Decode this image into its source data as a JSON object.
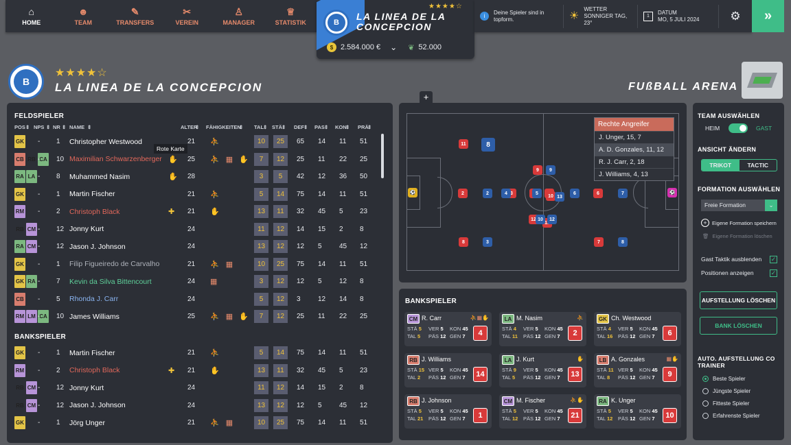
{
  "nav": [
    {
      "label": "HOME",
      "icon": "home-icon",
      "glyph": "⌂"
    },
    {
      "label": "TEAM",
      "icon": "team-icon",
      "glyph": "☻"
    },
    {
      "label": "TRANSFERS",
      "icon": "transfers-icon",
      "glyph": "✎"
    },
    {
      "label": "VEREIN",
      "icon": "club-icon",
      "glyph": "✂"
    },
    {
      "label": "MANAGER",
      "icon": "manager-icon",
      "glyph": "♙"
    },
    {
      "label": "STATISTIK",
      "icon": "trophy-icon",
      "glyph": "♕"
    }
  ],
  "club": {
    "name": "LA LINEA DE LA CONCEPCION",
    "logo_letter": "B",
    "stars": "★★★★☆",
    "money": "2.584.000 €",
    "fans": "52.000"
  },
  "info": {
    "notice": "Deine Spieler sind in topform.",
    "weather_title": "WETTER",
    "weather_value": "SONNIGER TAG, 23°",
    "date_title": "DATUM",
    "date_value": "MO, 5 JULI 2024",
    "next": "»"
  },
  "arena": "FUßBALL ARENA",
  "field": {
    "title": "FELDSPIELER",
    "bench_title": "BANKSPIELER",
    "tooltip_hover": "Rote Karte",
    "headers": {
      "pos": "POS",
      "nps": "NPS",
      "nr": "NR",
      "name": "NAME",
      "alter": "ALTER",
      "faeh": "FÄHIGKEITEN",
      "tal": "TAL",
      "sta": "STÄ",
      "def": "DEF",
      "pas": "PAS",
      "kon": "KON",
      "prae": "PRÄ"
    },
    "rows": [
      {
        "pos": [
          "GK"
        ],
        "nps": "-",
        "nr": "1",
        "name": "Christopher Westwood",
        "color": "#ffffff",
        "extra": "",
        "alter": "21",
        "skills": "⛹",
        "tal": "10",
        "sta": "25",
        "def": "65",
        "pas": "14",
        "kon": "11",
        "prae": "51"
      },
      {
        "pos": [
          "CB",
          "RB",
          "CA"
        ],
        "nps": "-",
        "nr": "10",
        "name": "Maximilian Schwarzenberger",
        "color": "#e2685b",
        "extra": "✋",
        "alter": "25",
        "skills": "⛹ ▦ ✋",
        "tal": "7",
        "sta": "12",
        "def": "25",
        "pas": "11",
        "kon": "22",
        "prae": "25"
      },
      {
        "pos": [
          "RA",
          "LA"
        ],
        "nps": "-",
        "nr": "8",
        "name": "Muhammed Nasim",
        "color": "#ffffff",
        "extra": "✋",
        "alter": "28",
        "skills": "",
        "tal": "3",
        "sta": "5",
        "def": "42",
        "pas": "12",
        "kon": "36",
        "prae": "50"
      },
      {
        "pos": [
          "GK"
        ],
        "nps": "-",
        "nr": "1",
        "name": "Martin Fischer",
        "color": "#ffffff",
        "extra": "",
        "alter": "21",
        "skills": "⛹",
        "tal": "5",
        "sta": "14",
        "def": "75",
        "pas": "14",
        "kon": "11",
        "prae": "51"
      },
      {
        "pos": [
          "RM"
        ],
        "nps": "-",
        "nr": "2",
        "name": "Christoph Black",
        "color": "#e2685b",
        "extra": "✚",
        "alter": "21",
        "skills": "✋",
        "tal": "13",
        "sta": "11",
        "def": "32",
        "pas": "45",
        "kon": "5",
        "prae": "23"
      },
      {
        "pos": [
          "RB",
          "CM"
        ],
        "nps": "-",
        "nr": "12",
        "name": "Jonny Kurt",
        "color": "#ffffff",
        "extra": "",
        "alter": "24",
        "skills": "",
        "tal": "11",
        "sta": "12",
        "def": "14",
        "pas": "15",
        "kon": "2",
        "prae": "8"
      },
      {
        "pos": [
          "RA",
          "CM"
        ],
        "nps": "-",
        "nr": "12",
        "name": "Jason J. Johnson",
        "color": "#ffffff",
        "extra": "",
        "alter": "24",
        "skills": "",
        "tal": "13",
        "sta": "12",
        "def": "12",
        "pas": "5",
        "kon": "45",
        "prae": "12"
      },
      {
        "pos": [
          "GK"
        ],
        "nps": "-",
        "nr": "1",
        "name": "Filip Figueiredo de Carvalho",
        "color": "#aeb2ba",
        "extra": "",
        "alter": "21",
        "skills": "⛹ ▦",
        "tal": "10",
        "sta": "25",
        "def": "75",
        "pas": "14",
        "kon": "11",
        "prae": "51"
      },
      {
        "pos": [
          "GK",
          "RA"
        ],
        "nps": "-",
        "nr": "7",
        "name": "Kevin da Silva Bittencourt",
        "color": "#5fd09a",
        "extra": "",
        "alter": "24",
        "skills": "▦",
        "tal": "3",
        "sta": "12",
        "def": "12",
        "pas": "5",
        "kon": "12",
        "prae": "8"
      },
      {
        "pos": [
          "CB"
        ],
        "nps": "-",
        "nr": "5",
        "name": "Rhonda J. Carr",
        "color": "#8ab4f0",
        "extra": "",
        "alter": "24",
        "skills": "",
        "tal": "5",
        "sta": "12",
        "def": "3",
        "pas": "12",
        "kon": "14",
        "prae": "8"
      },
      {
        "pos": [
          "RM",
          "LM",
          "CA"
        ],
        "nps": "-",
        "nr": "10",
        "name": "James Williams",
        "color": "#ffffff",
        "extra": "",
        "alter": "25",
        "skills": "⛹ ▦ ✋",
        "tal": "7",
        "sta": "12",
        "def": "25",
        "pas": "11",
        "kon": "22",
        "prae": "25"
      }
    ],
    "bench": [
      {
        "pos": [
          "GK"
        ],
        "nps": "-",
        "nr": "1",
        "name": "Martin Fischer",
        "color": "#ffffff",
        "extra": "",
        "alter": "21",
        "skills": "⛹",
        "tal": "5",
        "sta": "14",
        "def": "75",
        "pas": "14",
        "kon": "11",
        "prae": "51"
      },
      {
        "pos": [
          "RM"
        ],
        "nps": "-",
        "nr": "2",
        "name": "Christoph Black",
        "color": "#e2685b",
        "extra": "✚",
        "alter": "21",
        "skills": "✋",
        "tal": "13",
        "sta": "11",
        "def": "32",
        "pas": "45",
        "kon": "5",
        "prae": "23"
      },
      {
        "pos": [
          "RB",
          "CM"
        ],
        "nps": "-",
        "nr": "12",
        "name": "Jonny Kurt",
        "color": "#ffffff",
        "extra": "",
        "alter": "24",
        "skills": "",
        "tal": "11",
        "sta": "12",
        "def": "14",
        "pas": "15",
        "kon": "2",
        "prae": "8"
      },
      {
        "pos": [
          "RB",
          "CM"
        ],
        "nps": "-",
        "nr": "12",
        "name": "Jason J. Johnson",
        "color": "#ffffff",
        "extra": "",
        "alter": "24",
        "skills": "",
        "tal": "13",
        "sta": "12",
        "def": "12",
        "pas": "5",
        "kon": "45",
        "prae": "12"
      },
      {
        "pos": [
          "GK"
        ],
        "nps": "-",
        "nr": "1",
        "name": "Jörg Unger",
        "color": "#ffffff",
        "extra": "",
        "alter": "21",
        "skills": "⛹ ▦",
        "tal": "10",
        "sta": "25",
        "def": "75",
        "pas": "14",
        "kon": "11",
        "prae": "51"
      }
    ]
  },
  "pitch": {
    "plus": "+",
    "shirts_red": [
      "11",
      "2",
      "3",
      "4",
      "5",
      "6",
      "7",
      "8",
      "9",
      "10",
      "12",
      "13"
    ],
    "shirts_blue": [
      "8",
      "2",
      "3",
      "4",
      "5",
      "6",
      "7",
      "8",
      "9",
      "10",
      "12",
      "13"
    ],
    "tooltip": {
      "title": "Rechte Angreifer",
      "items": [
        "J. Unger, 15, 7",
        "A. D. Gonzales, 11, 12",
        "R. J. Carr, 2, 18",
        "J. Williams, 4, 13"
      ]
    }
  },
  "bankspieler": {
    "title": "BANKSPIELER",
    "labels": {
      "sta": "STÄ",
      "tal": "TAL",
      "ver": "VER",
      "pas": "PÄS",
      "kon": "KON",
      "gen": "GEN"
    },
    "cards": [
      {
        "pos": "CM",
        "name": "R. Carr",
        "sta": "5",
        "tal": "5",
        "ver": "5",
        "pas": "12",
        "kon": "45",
        "gen": "7",
        "nr": "4",
        "skills": "⛹▦✋"
      },
      {
        "pos": "LA",
        "name": "M. Nasim",
        "sta": "4",
        "tal": "11",
        "ver": "5",
        "pas": "12",
        "kon": "45",
        "gen": "7",
        "nr": "2",
        "skills": "⛹"
      },
      {
        "pos": "GK",
        "name": "Ch. Westwood",
        "sta": "4",
        "tal": "16",
        "ver": "5",
        "pas": "12",
        "kon": "45",
        "gen": "7",
        "nr": "6",
        "skills": ""
      },
      {
        "pos": "RB",
        "name": "J. Williams",
        "sta": "15",
        "tal": "2",
        "ver": "5",
        "pas": "12",
        "kon": "45",
        "gen": "7",
        "nr": "14",
        "skills": ""
      },
      {
        "pos": "LA",
        "name": "J. Kurt",
        "sta": "9",
        "tal": "5",
        "ver": "5",
        "pas": "12",
        "kon": "45",
        "gen": "7",
        "nr": "13",
        "skills": "✋"
      },
      {
        "pos": "LB",
        "name": "A. Gonzales",
        "sta": "11",
        "tal": "8",
        "ver": "5",
        "pas": "12",
        "kon": "45",
        "gen": "7",
        "nr": "9",
        "skills": "▦✋"
      },
      {
        "pos": "RB",
        "name": "J. Johnson",
        "sta": "5",
        "tal": "21",
        "ver": "5",
        "pas": "12",
        "kon": "45",
        "gen": "7",
        "nr": "1",
        "skills": ""
      },
      {
        "pos": "CM",
        "name": "M. Fischer",
        "sta": "5",
        "tal": "12",
        "ver": "5",
        "pas": "12",
        "kon": "45",
        "gen": "7",
        "nr": "21",
        "skills": "⛹✋"
      },
      {
        "pos": "RA",
        "name": "K. Unger",
        "sta": "5",
        "tal": "12",
        "ver": "5",
        "pas": "12",
        "kon": "45",
        "gen": "7",
        "nr": "10",
        "skills": ""
      }
    ]
  },
  "sidebar": {
    "team_title": "TEAM AUSWÄHLEN",
    "heim": "HEIM",
    "gast": "GAST",
    "view_title": "ANSICHT ÄNDERN",
    "trikot": "TRIKOT",
    "tactic": "TACTIC",
    "formation_title": "FORMATION AUSWÄHLEN",
    "formation_value": "Freie Formation",
    "save_formation": "Eigene Formation speichern",
    "delete_formation": "Eigene Formation löschen",
    "hide_tactic": "Gast Taktik ausblenden",
    "show_positions": "Positionen anzeigen",
    "clear_lineup": "AUFSTELLUNG LÖSCHEN",
    "clear_bench": "BANK LÖSCHEN",
    "auto_title": "AUTO. AUFSTELLUNG CO TRAINER",
    "options": [
      "Beste Spieler",
      "Jüngste Spieler",
      "Fitteste Spieler",
      "Erfahrenste Spieler"
    ]
  },
  "colors": {
    "accent": "#3fbd88",
    "red": "#d83a3a",
    "blue": "#2e5ea8",
    "panel": "#2c2f36"
  }
}
